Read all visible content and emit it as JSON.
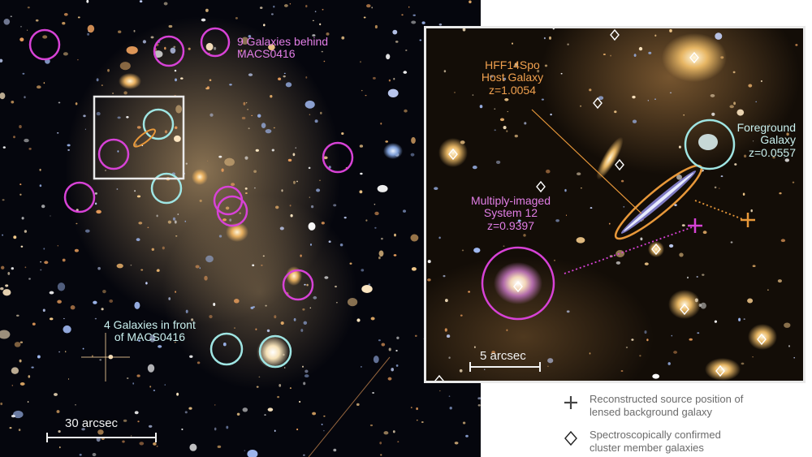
{
  "left_panel": {
    "behind_label": "9 Galaxies behind\nMACS0416",
    "front_label": "4 Galaxies in front\nof MACS0416",
    "scalebar_label": "30 arcsec",
    "colors": {
      "magenta": "#d742d6",
      "cyan": "#9fe5e3",
      "orange": "#e8983a",
      "white": "#e9e9e9"
    }
  },
  "inset_panel": {
    "host_label": "HFF14Spo\nHost Galaxy\nz=1.0054",
    "foreground_label": "Foreground\nGalaxy\nz=0.0557",
    "multiply_label": "Multiply-imaged\nSystem 12\nz=0.9397",
    "scalebar_label": "5 arcsec"
  },
  "legend": {
    "cross_text": "Reconstructed source position of\nlensed background galaxy",
    "diamond_text": "Spectroscopically confirmed\ncluster member galaxies",
    "cross_icon": "plus-icon",
    "diamond_icon": "diamond-icon"
  }
}
